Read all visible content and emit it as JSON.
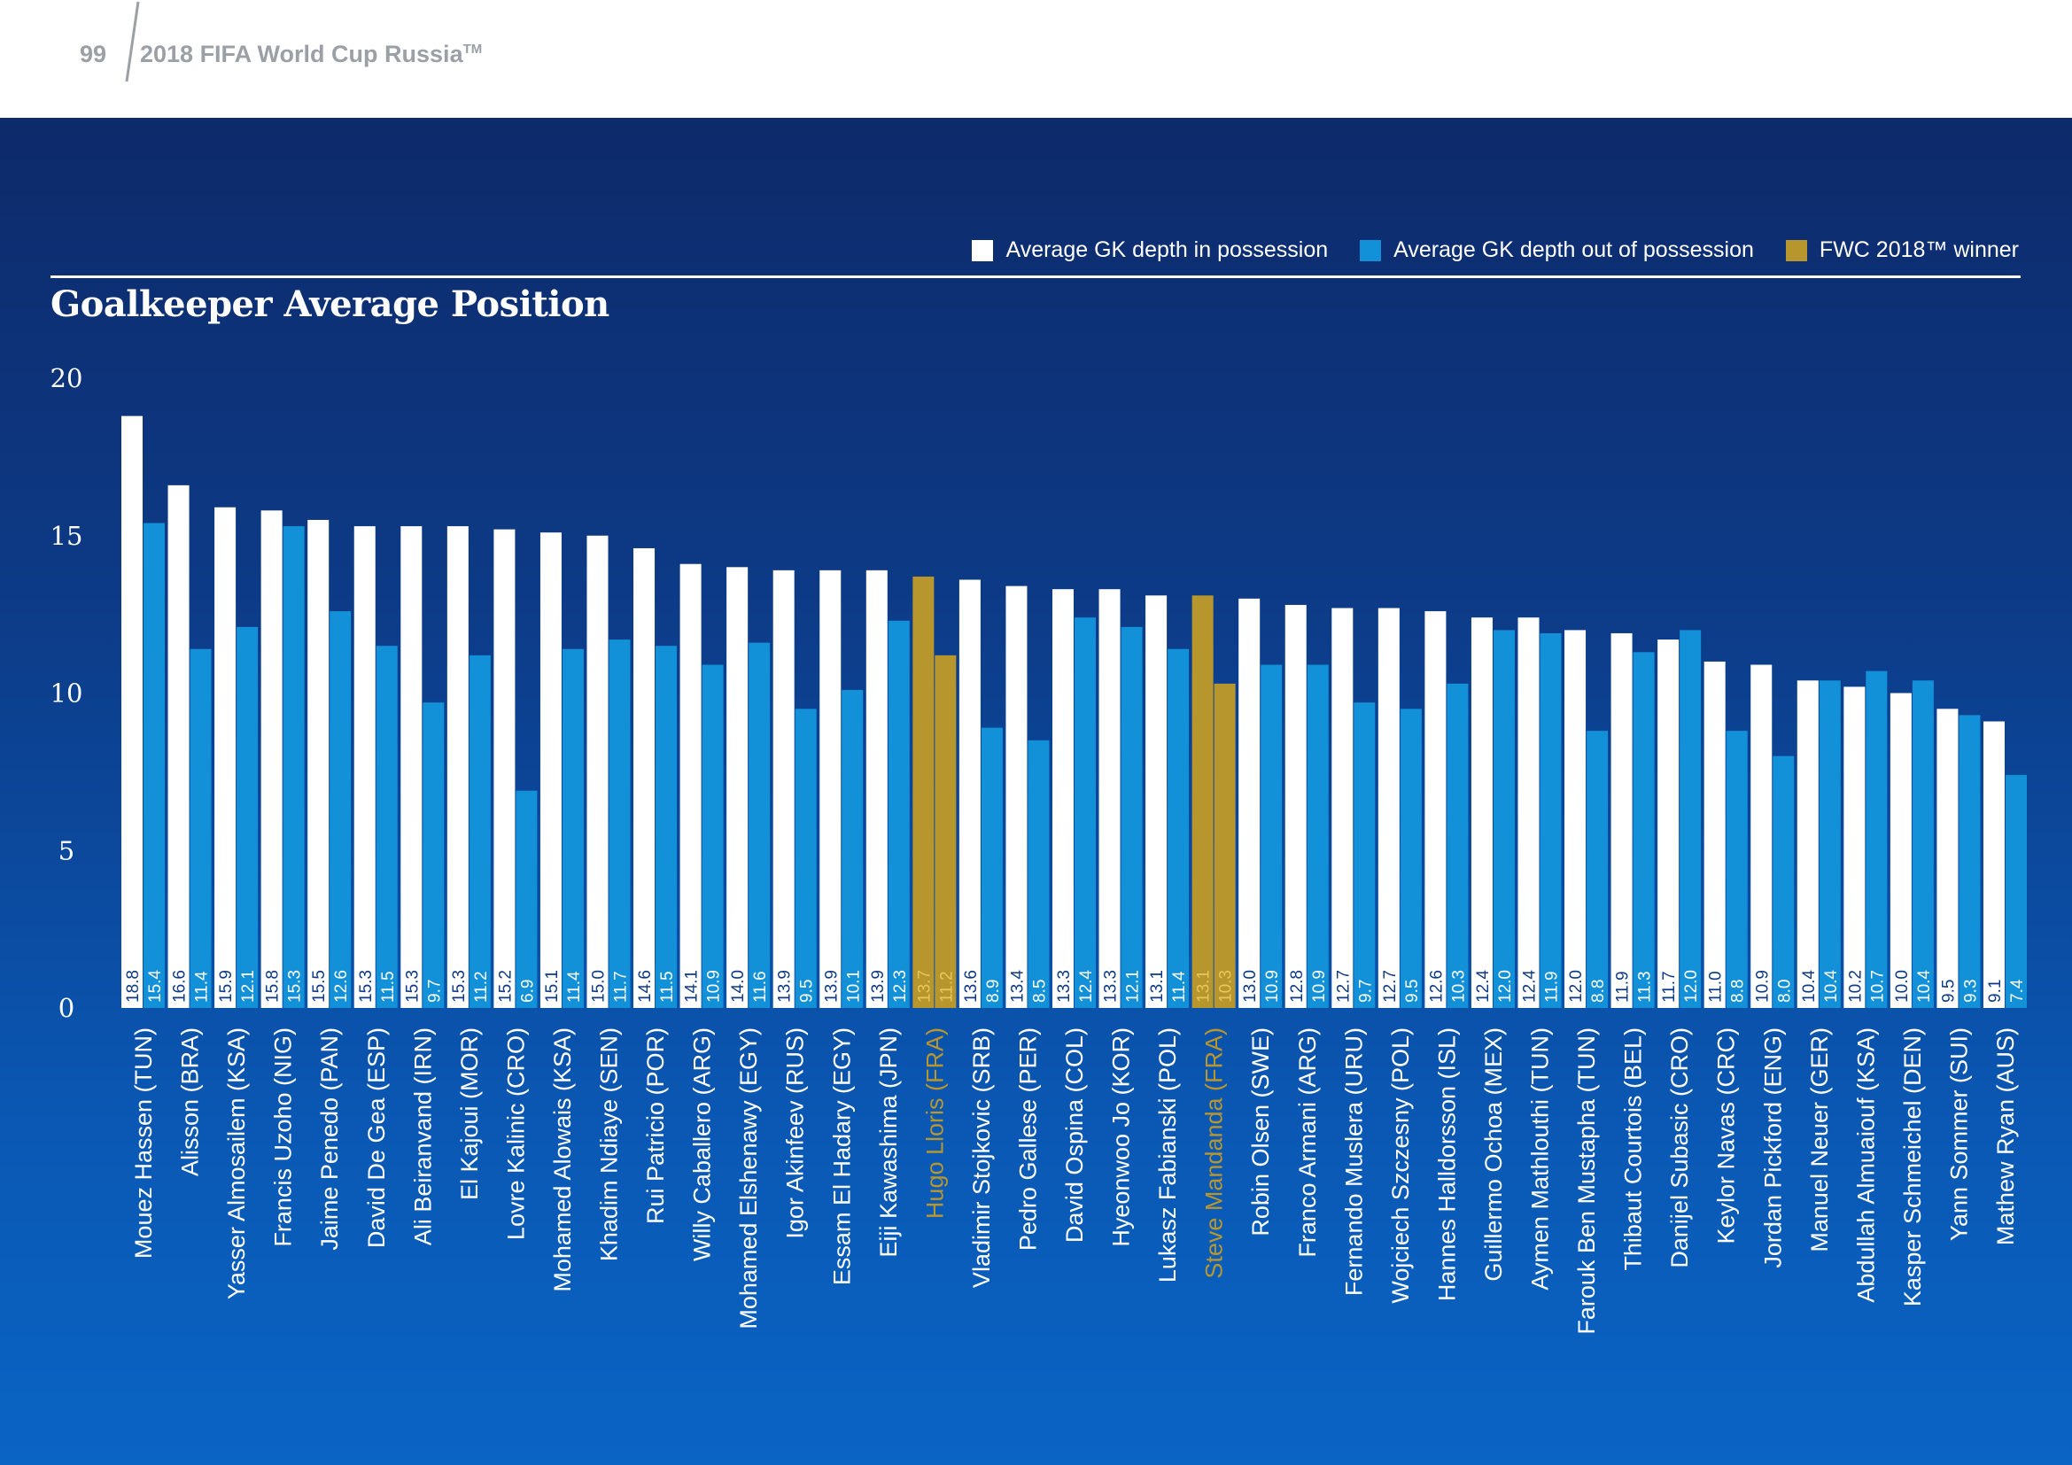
{
  "header": {
    "page_number": "99",
    "doc_title": "2018 FIFA World Cup Russia",
    "doc_title_mark": "TM"
  },
  "legend": {
    "items": [
      {
        "label": "Average GK depth in possession",
        "color": "#ffffff"
      },
      {
        "label": "Average GK depth out of possession",
        "color": "#1391d8"
      },
      {
        "label": "FWC 2018™ winner",
        "color": "#b7962e"
      }
    ]
  },
  "colors": {
    "in_possession": "#ffffff",
    "out_of_possession": "#1391d8",
    "winner": "#b7962e",
    "label_in_possession": "#0d3a86",
    "label_out_of_possession": "#ffffff",
    "label_winner": "#e8c657"
  },
  "chart_data": {
    "type": "bar",
    "title": "Goalkeeper Average Position",
    "ylim": [
      0,
      20
    ],
    "yticks": [
      0,
      5,
      10,
      15,
      20
    ],
    "grid": false,
    "legend_position": "top-right",
    "categories": [
      "Mouez Hassen (TUN)",
      "Alisson (BRA)",
      "Yasser Almosailem (KSA)",
      "Francis Uzoho (NIG)",
      "Jaime Penedo (PAN)",
      "David De Gea (ESP)",
      "Ali Beiranvand (IRN)",
      "El Kajoui (MOR)",
      "Lovre Kalinic (CRO)",
      "Mohamed Alowais (KSA)",
      "Khadim Ndiaye (SEN)",
      "Rui Patricio (POR)",
      "Willy Caballero (ARG)",
      "Mohamed Elshenawy (EGY)",
      "Igor Akinfeev (RUS)",
      "Essam El Hadary (EGY)",
      "Eiji Kawashima (JPN)",
      "Hugo Lloris (FRA)",
      "Vladimir Stojkovic (SRB)",
      "Pedro Gallese (PER)",
      "David Ospina (COL)",
      "Hyeonwoo Jo (KOR)",
      "Lukasz Fabianski (POL)",
      "Steve Mandanda (FRA)",
      "Robin Olsen (SWE)",
      "Franco Armani (ARG)",
      "Fernando Muslera (URU)",
      "Wojciech Szczesny (POL)",
      "Hannes Halldorsson (ISL)",
      "Guillermo Ochoa (MEX)",
      "Aymen Mathlouthi (TUN)",
      "Farouk Ben Mustapha (TUN)",
      "Thibaut Courtois (BEL)",
      "Danijel Subasic (CRO)",
      "Keylor Navas (CRC)",
      "Jordan Pickford (ENG)",
      "Manuel Neuer (GER)",
      "Abdullah Almuaiouf (KSA)",
      "Kasper Schmeichel (DEN)",
      "Yann Sommer (SUI)",
      "Mathew Ryan (AUS)"
    ],
    "series": [
      {
        "name": "Average GK depth in possession",
        "values": [
          18.8,
          16.6,
          15.9,
          15.8,
          15.5,
          15.3,
          15.3,
          15.3,
          15.2,
          15.1,
          15.0,
          14.6,
          14.1,
          14.0,
          13.9,
          13.9,
          13.9,
          13.7,
          13.6,
          13.4,
          13.3,
          13.3,
          13.1,
          13.1,
          13.0,
          12.8,
          12.7,
          12.7,
          12.6,
          12.4,
          12.4,
          12.0,
          11.9,
          11.7,
          11.0,
          10.9,
          10.4,
          10.2,
          10.0,
          9.5,
          9.1
        ]
      },
      {
        "name": "Average GK depth out of possession",
        "values": [
          15.4,
          11.4,
          12.1,
          15.3,
          12.6,
          11.5,
          9.7,
          11.2,
          6.9,
          11.4,
          11.7,
          11.5,
          10.9,
          11.6,
          9.5,
          10.1,
          12.3,
          11.2,
          8.9,
          8.5,
          12.4,
          12.1,
          11.4,
          10.3,
          10.9,
          10.9,
          9.7,
          9.5,
          10.3,
          12.0,
          11.9,
          8.8,
          11.3,
          12.0,
          8.8,
          8.0,
          10.4,
          10.7,
          10.4,
          9.3,
          7.4
        ]
      }
    ],
    "winner_indices": [
      17,
      23
    ],
    "value_labels_in": [
      "18.8",
      "16.6",
      "15.9",
      "15.8",
      "15.5",
      "15.3",
      "15.3",
      "15.3",
      "15.2",
      "15.1",
      "15.0",
      "14.6",
      "14.1",
      "14.0",
      "13.9",
      "13.9",
      "13.9",
      "13.7",
      "13.6",
      "13.4",
      "13.3",
      "13.3",
      "13.1",
      "13.1",
      "13.0",
      "12.8",
      "12.7",
      "12.7",
      "12.6",
      "12.4",
      "12.4",
      "12.0",
      "11.9",
      "11.7",
      "11.0",
      "10.9",
      "10.4",
      "10.2",
      "10.0",
      "9.5",
      "9.1"
    ],
    "value_labels_out": [
      "15.4",
      "11.4",
      "12.1",
      "15.3",
      "12.6",
      "11.5",
      "9.7",
      "11.2",
      "6.9",
      "11.4",
      "11.7",
      "11.5",
      "10.9",
      "11.6",
      "9.5",
      "10.1",
      "12.3",
      "11.2",
      "8.9",
      "8.5",
      "12.4",
      "12.1",
      "11.4",
      "10.3",
      "10.9",
      "10.9",
      "9.7",
      "9.5",
      "10.3",
      "12.0",
      "11.9",
      "8.8",
      "11.3",
      "12.0",
      "8.8",
      "8.0",
      "10.4",
      "10.7",
      "10.4",
      "9.3",
      "7.4"
    ]
  }
}
